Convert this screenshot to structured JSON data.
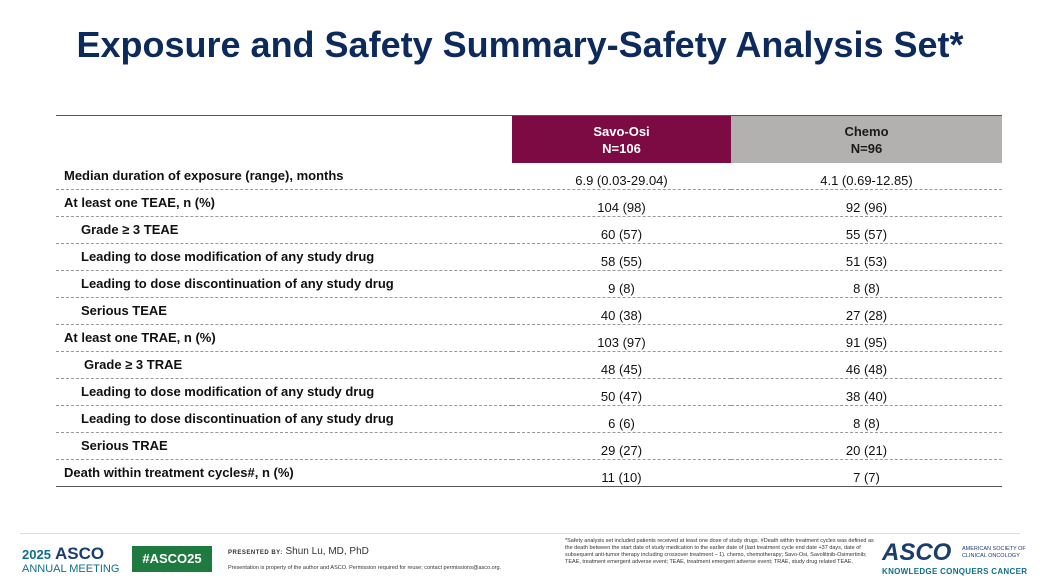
{
  "header": {
    "title": "Exposure and Safety Summary-Safety Analysis Set*"
  },
  "table": {
    "columns": [
      {
        "name": "Savo-Osi",
        "n": "N=106"
      },
      {
        "name": "Chemo",
        "n": "N=96"
      }
    ],
    "rows": [
      [
        "Median duration of exposure (range), months",
        "6.9 (0.03-29.04)",
        "4.1 (0.69-12.85)"
      ],
      [
        "At least one TEAE, n (%)",
        "104 (98)",
        "92 (96)"
      ],
      [
        "Grade ≥ 3 TEAE",
        "60 (57)",
        "55 (57)"
      ],
      [
        "Leading to dose modification of any study drug",
        "58 (55)",
        "51 (53)"
      ],
      [
        "Leading to dose discontinuation of any study drug",
        "9 (8)",
        "8 (8)"
      ],
      [
        "Serious TEAE",
        "40 (38)",
        "27 (28)"
      ],
      [
        "At least one TRAE, n (%)",
        "103 (97)",
        "91 (95)"
      ],
      [
        "Grade ≥ 3 TRAE",
        "48 (45)",
        "46 (48)"
      ],
      [
        "Leading to dose modification of any study drug",
        "50 (47)",
        "38 (40)"
      ],
      [
        "Leading to dose discontinuation of any study drug",
        "6 (6)",
        "8 (8)"
      ],
      [
        "Serious TRAE",
        "29 (27)",
        "20 (21)"
      ],
      [
        "Death within treatment cycles#, n (%)",
        "11 (10)",
        "7 (7)"
      ]
    ]
  },
  "footer": {
    "meeting_year": "2025",
    "meeting_brand": "ASCO",
    "meeting_name": "ANNUAL MEETING",
    "hashtag": "#ASCO25",
    "presented_by_label": "PRESENTED BY:",
    "presenter": "Shun Lu, MD, PhD",
    "permission": "Presentation is property of the author and ASCO. Permission required for reuse; contact permissions@asco.org.",
    "footnote": "*Safety analysis set included patients received at least one dose of study drugs. #Death within treatment cycles was defined as the death between the start date of study medication to the earlier date of (last treatment cycle end date +37 days, date of subsequent anti-tumor therapy including crossover treatment – 1). chemo, chemotherapy; Savo-Osi, Savolitinib-Osimertinib; TEAE, treatment emergent adverse event; TEAE, treatment emergent adverse event; TRAE, study drug related TEAE.",
    "org_brand": "ASCO",
    "org_name": "AMERICAN SOCIETY OF CLINICAL ONCOLOGY",
    "org_tagline": "KNOWLEDGE CONQUERS CANCER"
  }
}
